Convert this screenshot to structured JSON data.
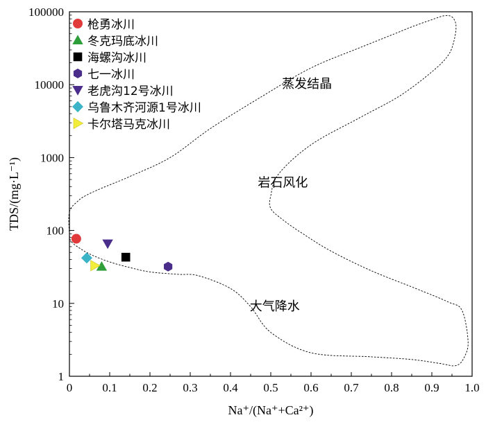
{
  "chart_data": {
    "type": "scatter",
    "title": "",
    "xlabel": "Na⁺/(Na⁺+Ca²⁺)",
    "ylabel": "TDS/(mg·L⁻¹)",
    "xlim": [
      0,
      1
    ],
    "ylim": [
      1,
      100000
    ],
    "yscale": "log",
    "grid": false,
    "legend_position": "top-left",
    "x_ticks": [
      "0",
      "0.1",
      "0.2",
      "0.3",
      "0.4",
      "0.5",
      "0.6",
      "0.7",
      "0.8",
      "0.9",
      "1.0"
    ],
    "y_ticks": [
      "1",
      "10",
      "100",
      "1000",
      "10000",
      "100000"
    ],
    "series": [
      {
        "name": "枪勇冰川",
        "marker": "circle",
        "color": "#e03a3a",
        "x": [
          0.017
        ],
        "y": [
          77
        ]
      },
      {
        "name": "冬克玛底冰川",
        "marker": "triangle-up",
        "color": "#2e9e3a",
        "x": [
          0.08
        ],
        "y": [
          32
        ]
      },
      {
        "name": "海螺沟冰川",
        "marker": "square",
        "color": "#000000",
        "x": [
          0.14
        ],
        "y": [
          43
        ]
      },
      {
        "name": "七一冰川",
        "marker": "hexagon",
        "color": "#4a2c8a",
        "x": [
          0.245
        ],
        "y": [
          32
        ]
      },
      {
        "name": "老虎沟12号冰川",
        "marker": "triangle-down",
        "color": "#4a2c8a",
        "x": [
          0.095
        ],
        "y": [
          66
        ]
      },
      {
        "name": "乌鲁木齐河源1号冰川",
        "marker": "diamond",
        "color": "#3bb4c8",
        "x": [
          0.043
        ],
        "y": [
          42
        ]
      },
      {
        "name": "卡尔塔马克冰川",
        "marker": "triangle-right",
        "color": "#f2ec3a",
        "x": [
          0.063
        ],
        "y": [
          33
        ]
      }
    ],
    "annotations": [
      {
        "text": "蒸发结晶",
        "x": 0.59,
        "y": 9000
      },
      {
        "text": "岩石风化",
        "x": 0.53,
        "y": 400
      },
      {
        "text": "大气降水",
        "x": 0.51,
        "y": 8
      }
    ],
    "boundary": [
      [
        0.0,
        180
      ],
      [
        0.02,
        250
      ],
      [
        0.04,
        300
      ],
      [
        0.08,
        380
      ],
      [
        0.15,
        550
      ],
      [
        0.25,
        1000
      ],
      [
        0.35,
        2500
      ],
      [
        0.48,
        7000
      ],
      [
        0.6,
        17000
      ],
      [
        0.72,
        32000
      ],
      [
        0.8,
        48000
      ],
      [
        0.85,
        62000
      ],
      [
        0.9,
        78000
      ],
      [
        0.93,
        88000
      ],
      [
        0.95,
        85000
      ],
      [
        0.96,
        65000
      ],
      [
        0.955,
        40000
      ],
      [
        0.94,
        25000
      ],
      [
        0.9,
        15000
      ],
      [
        0.82,
        7000
      ],
      [
        0.72,
        3500
      ],
      [
        0.6,
        1500
      ],
      [
        0.52,
        600
      ],
      [
        0.5,
        300
      ],
      [
        0.5,
        200
      ],
      [
        0.53,
        140
      ],
      [
        0.58,
        90
      ],
      [
        0.65,
        52
      ],
      [
        0.75,
        28
      ],
      [
        0.86,
        16
      ],
      [
        0.94,
        10.5
      ],
      [
        0.975,
        8
      ],
      [
        0.99,
        3
      ],
      [
        0.98,
        1.8
      ],
      [
        0.96,
        1.4
      ],
      [
        0.92,
        1.5
      ],
      [
        0.85,
        1.7
      ],
      [
        0.75,
        1.85
      ],
      [
        0.6,
        2.1
      ],
      [
        0.5,
        4
      ],
      [
        0.45,
        9
      ],
      [
        0.4,
        16
      ],
      [
        0.32,
        24
      ],
      [
        0.27,
        25
      ],
      [
        0.2,
        27
      ],
      [
        0.15,
        31
      ],
      [
        0.1,
        37
      ],
      [
        0.06,
        45
      ],
      [
        0.03,
        55
      ],
      [
        0.005,
        70
      ],
      [
        0.0,
        90
      ]
    ]
  }
}
